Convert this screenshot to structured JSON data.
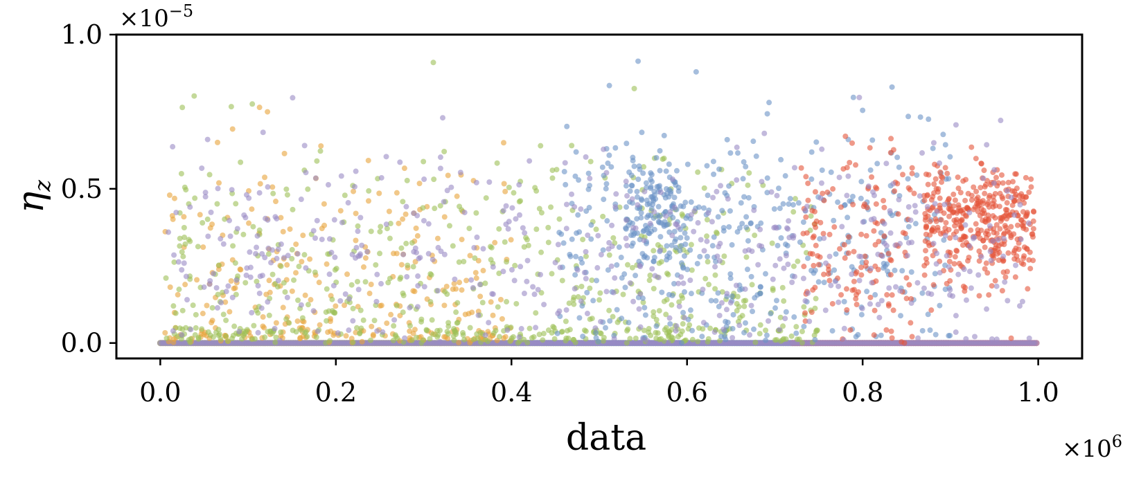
{
  "chart_data": {
    "type": "scatter",
    "title": "",
    "xlabel": "data",
    "ylabel": "η",
    "ylabel_subscript": "z",
    "x_offset_base": "×10",
    "x_offset_exp": "6",
    "y_offset_base": "×10",
    "y_offset_exp": "−5",
    "xlim": [
      -0.05,
      1.05
    ],
    "ylim": [
      -0.05,
      1.0
    ],
    "xticks": [
      0.0,
      0.2,
      0.4,
      0.6,
      0.8,
      1.0
    ],
    "xtick_labels": [
      "0.0",
      "0.2",
      "0.4",
      "0.6",
      "0.8",
      "1.0"
    ],
    "yticks": [
      0.0,
      0.5,
      1.0
    ],
    "ytick_labels": [
      "0.0",
      "0.5",
      "1.0"
    ],
    "grid": false,
    "legend": "none",
    "marker_alpha": 0.6,
    "series": [
      {
        "color": "#e8a33a",
        "clusters": [
          [
            0.0,
            0.4,
            0.15,
            0.23,
            300
          ]
        ],
        "baseline": [
          0.0,
          0.5
        ]
      },
      {
        "color": "#9cbf57",
        "clusters": [
          [
            0.0,
            0.6,
            0.15,
            0.23,
            500
          ],
          [
            0.55,
            0.75,
            0.1,
            0.2,
            150
          ]
        ],
        "baseline": [
          0.0,
          0.75
        ]
      },
      {
        "color": "#6b93c7",
        "clusters": [
          [
            0.45,
            0.9,
            0.35,
            0.2,
            400
          ],
          [
            0.53,
            0.6,
            0.42,
            0.08,
            120
          ]
        ],
        "baseline": [
          0.4,
          0.9
        ]
      },
      {
        "color": "#e4553a",
        "clusters": [
          [
            0.73,
            0.86,
            0.32,
            0.17,
            150
          ],
          [
            0.87,
            1.0,
            0.38,
            0.1,
            400
          ]
        ],
        "baseline": [
          0.72,
          1.0
        ]
      },
      {
        "color": "#9a8ac4",
        "clusters": [
          [
            0.0,
            1.0,
            0.3,
            0.17,
            500
          ]
        ],
        "baseline": [
          0.0,
          1.0
        ]
      }
    ]
  }
}
